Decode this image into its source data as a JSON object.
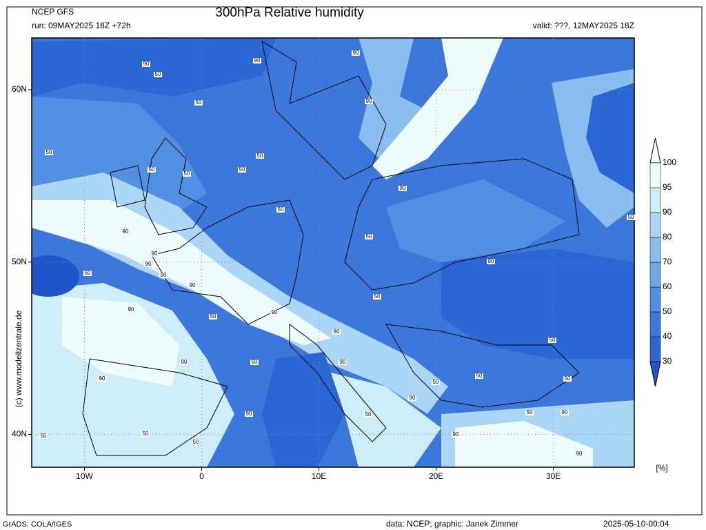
{
  "header": {
    "model": "NCEP GFS",
    "title": "300hPa Relative humidity",
    "run": "run: 09MAY2025 18Z +72h",
    "valid": "valid: ???, 12MAY2025 18Z"
  },
  "map": {
    "xlim": [
      -14.5,
      36.9
    ],
    "ylim": [
      38.1,
      63
    ],
    "xticks": [
      {
        "value": -10,
        "label": "10W"
      },
      0,
      {
        "value": 10,
        "label": "10E"
      },
      {
        "value": 20,
        "label": "20E"
      },
      {
        "value": 30,
        "label": "30E"
      }
    ],
    "yticks": [
      {
        "value": 40,
        "label": "40N"
      },
      {
        "value": 50,
        "label": "50N"
      },
      {
        "value": 60,
        "label": "60N"
      }
    ],
    "grid": true,
    "contour_labels": [
      "90",
      "50",
      "90",
      "90",
      "50",
      "90",
      "50",
      "50",
      "50",
      "50",
      "50",
      "90",
      "50",
      "50",
      "90",
      "50",
      "90",
      "90",
      "50",
      "90",
      "90",
      "90",
      "50",
      "90",
      "50",
      "90",
      "90",
      "50",
      "90",
      "50",
      "90",
      "90",
      "50",
      "50",
      "50",
      "90",
      "90",
      "50",
      "50",
      "90",
      "50",
      "50",
      "90",
      "50",
      "90"
    ]
  },
  "colorbar": {
    "levels": [
      30,
      40,
      50,
      60,
      70,
      80,
      90,
      95,
      100
    ],
    "colors": [
      "#1f55c8",
      "#2a66d4",
      "#3c78dc",
      "#5290e4",
      "#6da6eb",
      "#8bbef0",
      "#acd6f5",
      "#cdedf9",
      "#eefcfc",
      "#ffffff"
    ],
    "unit": "[%]"
  },
  "footer": {
    "watermark": "(c) www.modellzentrale.de",
    "software": "GrADS: COLA/IGES",
    "credit": "data: NCEP; graphic: Janek Zimmer",
    "timestamp": "2025-05-10-00:04"
  }
}
